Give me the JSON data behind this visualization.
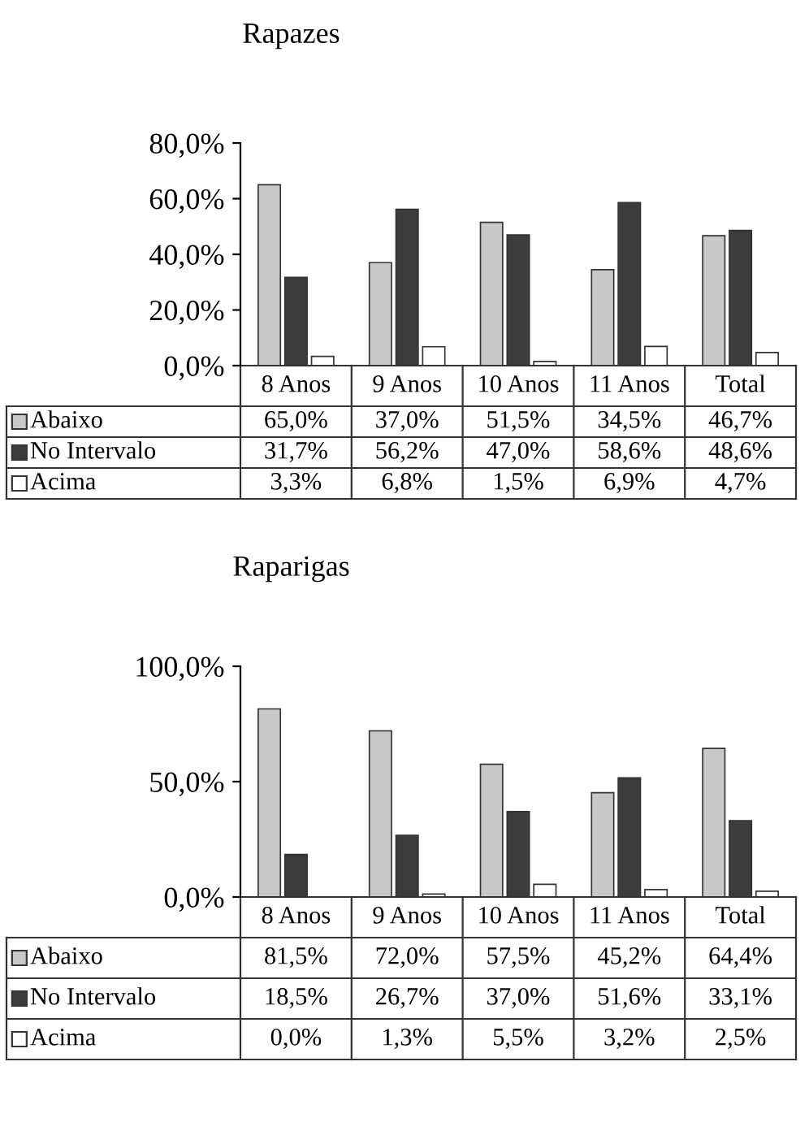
{
  "chart_data": [
    {
      "type": "bar",
      "title": "Rapazes",
      "categories": [
        "8 Anos",
        "9 Anos",
        "10 Anos",
        "11 Anos",
        "Total"
      ],
      "series": [
        {
          "name": "Abaixo",
          "color": "#c8c8c8",
          "values": [
            65.0,
            37.0,
            51.5,
            34.5,
            46.7
          ],
          "value_labels": [
            "65,0%",
            "37,0%",
            "51,5%",
            "34,5%",
            "46,7%"
          ]
        },
        {
          "name": "No Intervalo",
          "color": "#3c3c3c",
          "values": [
            31.7,
            56.2,
            47.0,
            58.6,
            48.6
          ],
          "value_labels": [
            "31,7%",
            "56,2%",
            "47,0%",
            "58,6%",
            "48,6%"
          ]
        },
        {
          "name": "Acima",
          "color": "#ffffff",
          "values": [
            3.3,
            6.8,
            1.5,
            6.9,
            4.7
          ],
          "value_labels": [
            "3,3%",
            "6,8%",
            "1,5%",
            "6,9%",
            "4,7%"
          ]
        }
      ],
      "ylim": [
        0,
        80
      ],
      "yticks": [
        {
          "value": 0,
          "label": "0,0%"
        },
        {
          "value": 20,
          "label": "20,0%"
        },
        {
          "value": 40,
          "label": "40,0%"
        },
        {
          "value": 60,
          "label": "60,0%"
        },
        {
          "value": 80,
          "label": "80,0%"
        }
      ],
      "legend": "bottom"
    },
    {
      "type": "bar",
      "title": "Raparigas",
      "categories": [
        "8 Anos",
        "9 Anos",
        "10 Anos",
        "11 Anos",
        "Total"
      ],
      "series": [
        {
          "name": "Abaixo",
          "color": "#c8c8c8",
          "values": [
            81.5,
            72.0,
            57.5,
            45.2,
            64.4
          ],
          "value_labels": [
            "81,5%",
            "72,0%",
            "57,5%",
            "45,2%",
            "64,4%"
          ]
        },
        {
          "name": "No Intervalo",
          "color": "#3c3c3c",
          "values": [
            18.5,
            26.7,
            37.0,
            51.6,
            33.1
          ],
          "value_labels": [
            "18,5%",
            "26,7%",
            "37,0%",
            "51,6%",
            "33,1%"
          ]
        },
        {
          "name": "Acima",
          "color": "#ffffff",
          "values": [
            0.0,
            1.3,
            5.5,
            3.2,
            2.5
          ],
          "value_labels": [
            "0,0%",
            "1,3%",
            "5,5%",
            "3,2%",
            "2,5%"
          ]
        }
      ],
      "ylim": [
        0,
        100
      ],
      "yticks": [
        {
          "value": 0,
          "label": "0,0%"
        },
        {
          "value": 50,
          "label": "50,0%"
        },
        {
          "value": 100,
          "label": "100,0%"
        }
      ],
      "legend": "bottom"
    }
  ]
}
